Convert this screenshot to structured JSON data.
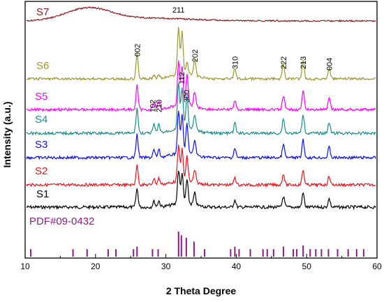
{
  "chart_data": {
    "type": "line",
    "xlabel": "2 Theta Degree",
    "ylabel": "Intensity (a.u.)",
    "xlim": [
      10,
      60
    ],
    "xticks": [
      "10",
      "20",
      "30",
      "40",
      "50",
      "60"
    ],
    "series": [
      {
        "name": "S1",
        "color": "#000000"
      },
      {
        "name": "S2",
        "color": "#e8141b"
      },
      {
        "name": "S3",
        "color": "#1010e0"
      },
      {
        "name": "S4",
        "color": "#1a8c8c"
      },
      {
        "name": "S5",
        "color": "#ff00ff"
      },
      {
        "name": "S6",
        "color": "#9a9a2a"
      },
      {
        "name": "S7",
        "color": "#8b1a1a"
      }
    ],
    "peaks": [
      {
        "x": 25.9,
        "h": 0.55
      },
      {
        "x": 28.3,
        "h": 0.18
      },
      {
        "x": 29.0,
        "h": 0.18
      },
      {
        "x": 31.8,
        "h": 1.0
      },
      {
        "x": 32.3,
        "h": 0.9
      },
      {
        "x": 33.0,
        "h": 0.7
      },
      {
        "x": 34.1,
        "h": 0.35
      },
      {
        "x": 39.8,
        "h": 0.22
      },
      {
        "x": 46.7,
        "h": 0.32
      },
      {
        "x": 49.5,
        "h": 0.42
      },
      {
        "x": 53.2,
        "h": 0.25
      }
    ],
    "s6_annotations": [
      {
        "label": "002",
        "x": 25.9
      },
      {
        "label": "211",
        "x": 31.8
      },
      {
        "label": "202",
        "x": 34.1
      },
      {
        "label": "310",
        "x": 39.8
      },
      {
        "label": "222",
        "x": 46.7
      },
      {
        "label": "213",
        "x": 49.5
      },
      {
        "label": "004",
        "x": 53.2
      }
    ],
    "s5_annotations": [
      {
        "label": "102",
        "x": 28.1
      },
      {
        "label": "210",
        "x": 29.0
      },
      {
        "label": "112",
        "x": 32.2
      },
      {
        "label": "300",
        "x": 32.9
      }
    ],
    "reference": {
      "label": "PDF#09-0432",
      "color": "#8b1a8b",
      "lines": [
        {
          "x": 10.8,
          "h": 0.3
        },
        {
          "x": 16.8,
          "h": 0.3
        },
        {
          "x": 18.8,
          "h": 0.3
        },
        {
          "x": 21.8,
          "h": 0.3
        },
        {
          "x": 22.9,
          "h": 0.3
        },
        {
          "x": 25.4,
          "h": 0.3
        },
        {
          "x": 25.9,
          "h": 0.4
        },
        {
          "x": 28.1,
          "h": 0.3
        },
        {
          "x": 28.9,
          "h": 0.3
        },
        {
          "x": 31.8,
          "h": 1.0
        },
        {
          "x": 32.2,
          "h": 0.85
        },
        {
          "x": 32.9,
          "h": 0.75
        },
        {
          "x": 34.0,
          "h": 0.6
        },
        {
          "x": 35.5,
          "h": 0.3
        },
        {
          "x": 39.2,
          "h": 0.3
        },
        {
          "x": 39.8,
          "h": 0.4
        },
        {
          "x": 40.4,
          "h": 0.3
        },
        {
          "x": 42.0,
          "h": 0.3
        },
        {
          "x": 43.8,
          "h": 0.3
        },
        {
          "x": 44.4,
          "h": 0.3
        },
        {
          "x": 45.3,
          "h": 0.3
        },
        {
          "x": 46.7,
          "h": 0.4
        },
        {
          "x": 48.1,
          "h": 0.3
        },
        {
          "x": 48.6,
          "h": 0.3
        },
        {
          "x": 49.5,
          "h": 0.45
        },
        {
          "x": 50.5,
          "h": 0.3
        },
        {
          "x": 51.3,
          "h": 0.3
        },
        {
          "x": 52.1,
          "h": 0.3
        },
        {
          "x": 53.1,
          "h": 0.3
        },
        {
          "x": 54.4,
          "h": 0.3
        },
        {
          "x": 55.9,
          "h": 0.3
        },
        {
          "x": 57.1,
          "h": 0.3
        },
        {
          "x": 58.1,
          "h": 0.3
        }
      ]
    }
  }
}
